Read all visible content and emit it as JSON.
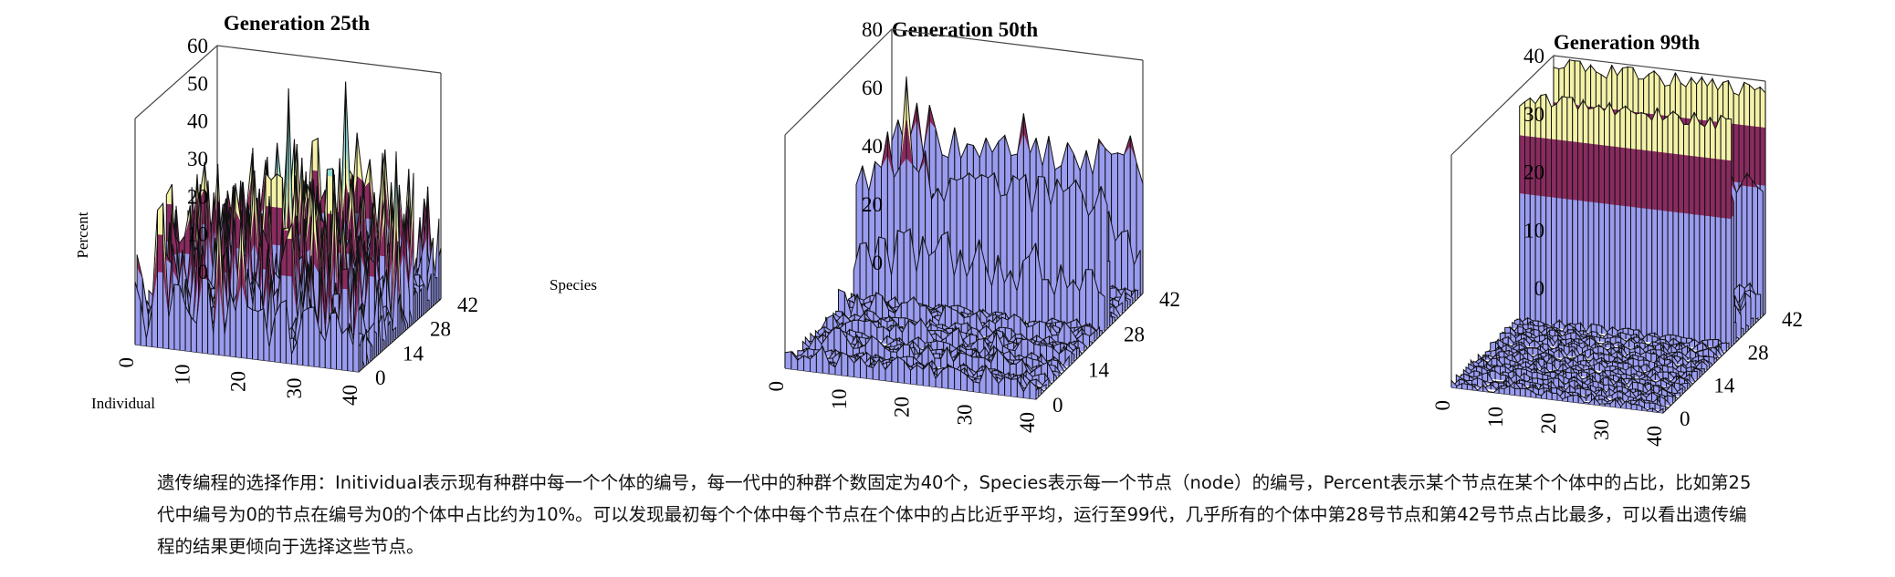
{
  "chart_data": [
    {
      "type": "surface3d",
      "title": "Generation 25th",
      "xlabel": "Individual",
      "ylabel": "Species",
      "zlabel": "Percent",
      "x_ticks": [
        "0",
        "10",
        "20",
        "30",
        "40"
      ],
      "y_ticks": [
        "0",
        "14",
        "28",
        "42"
      ],
      "z_ticks": [
        "0",
        "10",
        "20",
        "30",
        "40",
        "50",
        "60"
      ],
      "xlim": [
        0,
        40
      ],
      "ylim": [
        0,
        42
      ],
      "zlim": [
        0,
        60
      ],
      "color_bands": [
        {
          "from": 0,
          "to": 20,
          "color": "#9a9cf0"
        },
        {
          "from": 20,
          "to": 30,
          "color": "#8a2b60"
        },
        {
          "from": 30,
          "to": 40,
          "color": "#f4f2a8"
        },
        {
          "from": 40,
          "to": 60,
          "color": "#8fd9d3"
        }
      ]
    },
    {
      "type": "surface3d",
      "title": "Generation 50th",
      "x_ticks": [
        "0",
        "10",
        "20",
        "30",
        "40"
      ],
      "y_ticks": [
        "0",
        "14",
        "28",
        "42"
      ],
      "z_ticks": [
        "0",
        "20",
        "40",
        "60",
        "80"
      ],
      "xlim": [
        0,
        40
      ],
      "ylim": [
        0,
        42
      ],
      "zlim": [
        0,
        80
      ],
      "color_bands": [
        {
          "from": 0,
          "to": 50,
          "color": "#9a9cf0"
        },
        {
          "from": 50,
          "to": 65,
          "color": "#8a2b60"
        },
        {
          "from": 65,
          "to": 80,
          "color": "#f4f2a8"
        }
      ]
    },
    {
      "type": "surface3d",
      "title": "Generation 99th",
      "x_ticks": [
        "0",
        "10",
        "20",
        "30",
        "40"
      ],
      "y_ticks": [
        "0",
        "14",
        "28",
        "42"
      ],
      "z_ticks": [
        "0",
        "10",
        "20",
        "30",
        "40"
      ],
      "xlim": [
        0,
        40
      ],
      "ylim": [
        0,
        42
      ],
      "zlim": [
        0,
        40
      ],
      "color_bands": [
        {
          "from": 0,
          "to": 22,
          "color": "#9a9cf0"
        },
        {
          "from": 22,
          "to": 32,
          "color": "#8a2b60"
        },
        {
          "from": 32,
          "to": 45,
          "color": "#f4f2a8"
        }
      ]
    }
  ],
  "caption": "遗传编程的选择作用：Initividual表示现有种群中每一个个体的编号，每一代中的种群个数固定为40个，Species表示每一个节点（node）的编号，Percent表示某个节点在某个个体中的占比，比如第25代中编号为0的节点在编号为0的个体中占比约为10%。可以发现最初每个个体中每个节点在个体中的占比近乎平均，运行至99代，几乎所有的个体中第28号节点和第42号节点占比最多，可以看出遗传编程的结果更倾向于选择这些节点。"
}
